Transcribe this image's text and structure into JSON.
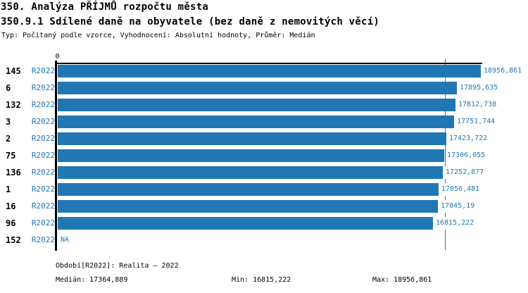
{
  "title": "350. Analýza PŘÍJMŮ rozpočtu města",
  "subtitle": "350.9.1 Sdílené daně na obyvatele (bez daně z nemovitých věcí)",
  "meta": "Typ: Počítaný podle vzorce, Vyhodnocení: Absolutní hodnoty, Průměr: Medián",
  "colors": {
    "bar": "#2077b4",
    "blue_text": "#1f77b4",
    "median_line": "#2077b4",
    "axis": "#000000",
    "background": "#ffffff"
  },
  "chart_data": {
    "type": "bar",
    "orientation": "horizontal",
    "grid": false,
    "legend": false,
    "x_axis": {
      "origin_label": "0",
      "min": 0,
      "max": 18956.861
    },
    "series_label": "R2022",
    "rows": [
      {
        "id": "145",
        "period": "R2022",
        "value": 18956.861,
        "label": "18956,861"
      },
      {
        "id": "6",
        "period": "R2022",
        "value": 17895.635,
        "label": "17895,635"
      },
      {
        "id": "132",
        "period": "R2022",
        "value": 17812.738,
        "label": "17812,738"
      },
      {
        "id": "3",
        "period": "R2022",
        "value": 17751.744,
        "label": "17751,744"
      },
      {
        "id": "2",
        "period": "R2022",
        "value": 17423.722,
        "label": "17423,722"
      },
      {
        "id": "75",
        "period": "R2022",
        "value": 17306.055,
        "label": "17306,055"
      },
      {
        "id": "136",
        "period": "R2022",
        "value": 17252.877,
        "label": "17252,877"
      },
      {
        "id": "1",
        "period": "R2022",
        "value": 17056.481,
        "label": "17056,481"
      },
      {
        "id": "16",
        "period": "R2022",
        "value": 17045.19,
        "label": "17045,19"
      },
      {
        "id": "96",
        "period": "R2022",
        "value": 16815.222,
        "label": "16815,222"
      },
      {
        "id": "152",
        "period": "R2022",
        "value": null,
        "label": "NA"
      }
    ],
    "median_value": 17364.889,
    "median_label": "17364,889"
  },
  "footer": {
    "period_line": "Období[R2022]: Realita – 2022",
    "median": "Medián: 17364,889",
    "min": "Min: 16815,222",
    "max": "Max: 18956,861"
  }
}
